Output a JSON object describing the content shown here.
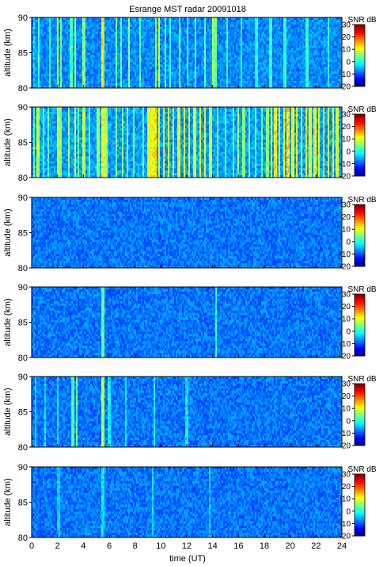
{
  "chart_data": {
    "type": "heatmap",
    "title": "Esrange MST radar 20091018",
    "xlabel": "time (UT)",
    "x_range": [
      0,
      24
    ],
    "x_ticks": [
      "0",
      "2",
      "4",
      "6",
      "8",
      "10",
      "12",
      "14",
      "16",
      "18",
      "20",
      "22",
      "24"
    ],
    "ylabel": "altitude (km)",
    "y_range": [
      80,
      90
    ],
    "y_ticks": [
      "80",
      "85",
      "90"
    ],
    "colorbar": {
      "label": "SNR dB",
      "range": [
        -20,
        30
      ],
      "ticks": [
        "-20",
        "-10",
        "0",
        "10",
        "20",
        "30"
      ],
      "colormap": "jet"
    },
    "panels": [
      {
        "name": "panel-1",
        "base_snr": -7,
        "stripes": [
          [
            0.2,
            -3
          ],
          [
            0.55,
            2
          ],
          [
            1.45,
            1
          ],
          [
            2.05,
            9
          ],
          [
            2.25,
            3
          ],
          [
            3.05,
            2
          ],
          [
            3.35,
            6
          ],
          [
            4.05,
            5
          ],
          [
            5.45,
            12
          ],
          [
            5.6,
            5
          ],
          [
            6.55,
            4
          ],
          [
            6.95,
            3
          ],
          [
            7.5,
            6
          ],
          [
            8.35,
            2
          ],
          [
            9.6,
            6
          ],
          [
            9.85,
            9
          ],
          [
            10.35,
            4
          ],
          [
            10.75,
            2
          ],
          [
            11.45,
            6
          ],
          [
            12.1,
            3
          ],
          [
            12.7,
            4
          ],
          [
            13.4,
            3
          ],
          [
            14.05,
            8
          ],
          [
            14.2,
            4
          ],
          [
            15.1,
            1
          ],
          [
            16.2,
            1
          ],
          [
            17.4,
            0
          ],
          [
            18.5,
            1
          ],
          [
            19.6,
            1
          ],
          [
            21.3,
            1
          ],
          [
            23.0,
            1
          ]
        ]
      },
      {
        "name": "panel-2",
        "base_snr": -6,
        "stripes": [
          [
            0.15,
            3
          ],
          [
            0.5,
            8
          ],
          [
            0.9,
            5
          ],
          [
            1.3,
            4
          ],
          [
            2.05,
            10
          ],
          [
            2.2,
            6
          ],
          [
            2.9,
            6
          ],
          [
            3.35,
            9
          ],
          [
            3.65,
            4
          ],
          [
            4.05,
            8
          ],
          [
            4.45,
            5
          ],
          [
            5.15,
            6
          ],
          [
            5.5,
            11
          ],
          [
            5.75,
            7
          ],
          [
            6.55,
            5
          ],
          [
            7.0,
            6
          ],
          [
            7.45,
            6
          ],
          [
            7.9,
            5
          ],
          [
            8.6,
            4
          ],
          [
            9.05,
            10
          ],
          [
            9.3,
            11
          ],
          [
            9.55,
            12
          ],
          [
            9.85,
            10
          ],
          [
            10.25,
            11
          ],
          [
            10.6,
            10
          ],
          [
            11.0,
            12
          ],
          [
            11.4,
            11
          ],
          [
            11.8,
            10
          ],
          [
            12.2,
            11
          ],
          [
            12.6,
            10
          ],
          [
            13.0,
            11
          ],
          [
            13.4,
            10
          ],
          [
            13.85,
            9
          ],
          [
            14.4,
            7
          ],
          [
            15.0,
            5
          ],
          [
            15.6,
            5
          ],
          [
            16.0,
            6
          ],
          [
            16.4,
            6
          ],
          [
            16.8,
            5
          ],
          [
            17.3,
            5
          ],
          [
            17.8,
            4
          ],
          [
            18.25,
            6
          ],
          [
            18.55,
            11
          ],
          [
            18.85,
            12
          ],
          [
            19.15,
            10
          ],
          [
            19.5,
            11
          ],
          [
            19.85,
            13
          ],
          [
            20.2,
            10
          ],
          [
            20.55,
            11
          ],
          [
            20.9,
            10
          ],
          [
            21.25,
            12
          ],
          [
            21.55,
            10
          ],
          [
            21.9,
            11
          ],
          [
            22.25,
            10
          ],
          [
            22.6,
            11
          ],
          [
            22.95,
            10
          ],
          [
            23.3,
            11
          ],
          [
            23.65,
            10
          ]
        ]
      },
      {
        "name": "panel-3",
        "base_snr": -8,
        "stripes": []
      },
      {
        "name": "panel-4",
        "base_snr": -8,
        "stripes": [
          [
            5.5,
            3
          ],
          [
            14.3,
            1
          ]
        ]
      },
      {
        "name": "panel-5",
        "base_snr": -8,
        "stripes": [
          [
            0.3,
            -2
          ],
          [
            1.0,
            -2
          ],
          [
            2.0,
            -1
          ],
          [
            3.2,
            2
          ],
          [
            3.45,
            4
          ],
          [
            5.45,
            8
          ],
          [
            5.6,
            6
          ],
          [
            6.0,
            -1
          ],
          [
            7.3,
            -2
          ],
          [
            9.5,
            -1
          ],
          [
            12.0,
            -2
          ]
        ]
      },
      {
        "name": "panel-6",
        "base_snr": -8,
        "stripes": [
          [
            2.1,
            -3
          ],
          [
            5.5,
            -2
          ],
          [
            9.4,
            -2
          ],
          [
            13.8,
            -3
          ]
        ]
      }
    ]
  }
}
